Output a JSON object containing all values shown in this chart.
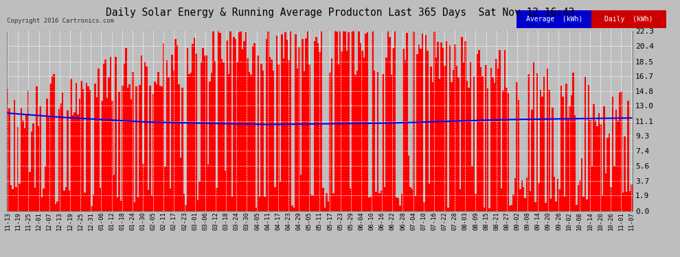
{
  "title": "Daily Solar Energy & Running Average Producton Last 365 Days  Sat Nov 12 16:43",
  "copyright": "Copyright 2016 Cartronics.com",
  "yticks": [
    0.0,
    1.9,
    3.7,
    5.6,
    7.4,
    9.3,
    11.1,
    13.0,
    14.8,
    16.7,
    18.5,
    20.4,
    22.3
  ],
  "ymax": 22.3,
  "ymin": 0.0,
  "bar_color": "#FF0000",
  "avg_color": "#0000EE",
  "bg_color": "#BEBEBE",
  "plot_bg_color": "#BEBEBE",
  "grid_color": "#FFFFFF",
  "title_color": "#000000",
  "legend_avg_bg": "#0000CC",
  "legend_daily_bg": "#CC0000",
  "legend_text_color": "#FFFFFF",
  "xtick_labels": [
    "11-13",
    "11-19",
    "11-25",
    "12-01",
    "12-07",
    "12-13",
    "12-19",
    "12-25",
    "12-31",
    "01-06",
    "01-12",
    "01-18",
    "01-24",
    "01-30",
    "02-05",
    "02-11",
    "02-17",
    "02-23",
    "03-01",
    "03-06",
    "03-12",
    "03-18",
    "03-24",
    "03-30",
    "04-05",
    "04-11",
    "04-17",
    "04-23",
    "04-29",
    "05-05",
    "05-11",
    "05-17",
    "05-23",
    "05-29",
    "06-04",
    "06-10",
    "06-16",
    "06-22",
    "06-28",
    "07-04",
    "07-10",
    "07-16",
    "07-22",
    "07-28",
    "08-03",
    "08-09",
    "08-15",
    "08-21",
    "08-27",
    "09-02",
    "09-08",
    "09-14",
    "09-20",
    "09-26",
    "10-02",
    "10-08",
    "10-14",
    "10-20",
    "10-26",
    "11-01",
    "11-07"
  ],
  "n_bars": 365,
  "avg_ctrl_x": [
    0,
    30,
    80,
    150,
    220,
    290,
    364
  ],
  "avg_ctrl_y": [
    12.1,
    11.6,
    11.0,
    10.7,
    10.85,
    11.3,
    11.5
  ],
  "seed": 42
}
